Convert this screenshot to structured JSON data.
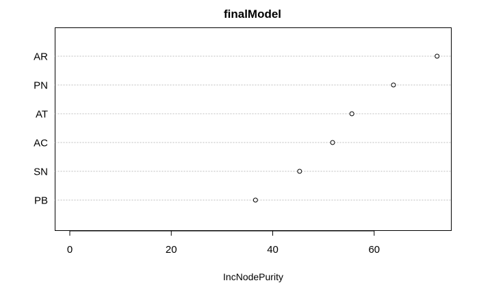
{
  "chart_data": {
    "type": "scatter",
    "title": "finalModel",
    "xlabel": "IncNodePurity",
    "ylabel": "",
    "xlim": [
      -2.9,
      75.2
    ],
    "x_ticks": [
      "0",
      "20",
      "40",
      "60"
    ],
    "x_tick_values": [
      0,
      20,
      40,
      60
    ],
    "categories": [
      "AR",
      "PN",
      "AT",
      "AC",
      "SN",
      "PB"
    ],
    "values": [
      72.4,
      63.8,
      55.6,
      51.8,
      45.3,
      36.6
    ],
    "grid": "horizontal dotted",
    "legend": "none",
    "point_style": "open circle"
  }
}
